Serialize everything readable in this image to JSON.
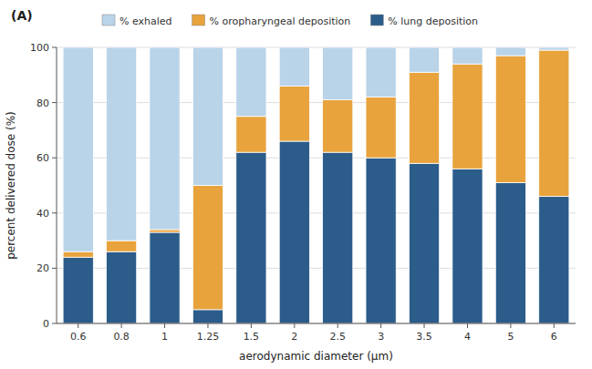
{
  "chart_data": {
    "type": "bar",
    "stacked": true,
    "title": "(A)",
    "xlabel": "aerodynamic diameter (μm)",
    "ylabel": "percent delivered dose (%)",
    "categories": [
      "0.6",
      "0.8",
      "1",
      "1.25",
      "1.5",
      "2",
      "2.5",
      "3",
      "3.5",
      "4",
      "5",
      "6"
    ],
    "series": [
      {
        "name": "% lung deposition",
        "color": "#2b5c8a",
        "values": [
          24,
          26,
          33,
          5,
          62,
          66,
          62,
          60,
          58,
          56,
          51,
          46
        ]
      },
      {
        "name": "% oropharyngeal deposition",
        "color": "#e8a33d",
        "values": [
          2,
          4,
          1,
          45,
          13,
          20,
          19,
          22,
          33,
          38,
          46,
          53
        ]
      },
      {
        "name": "% exhaled",
        "color": "#b9d3e8",
        "values": [
          74,
          70,
          66,
          50,
          25,
          14,
          19,
          18,
          9,
          6,
          3,
          1
        ]
      }
    ],
    "ylim": [
      0,
      100
    ],
    "yticks": [
      0,
      20,
      40,
      60,
      80,
      100
    ],
    "grid": true,
    "legend": "top"
  }
}
